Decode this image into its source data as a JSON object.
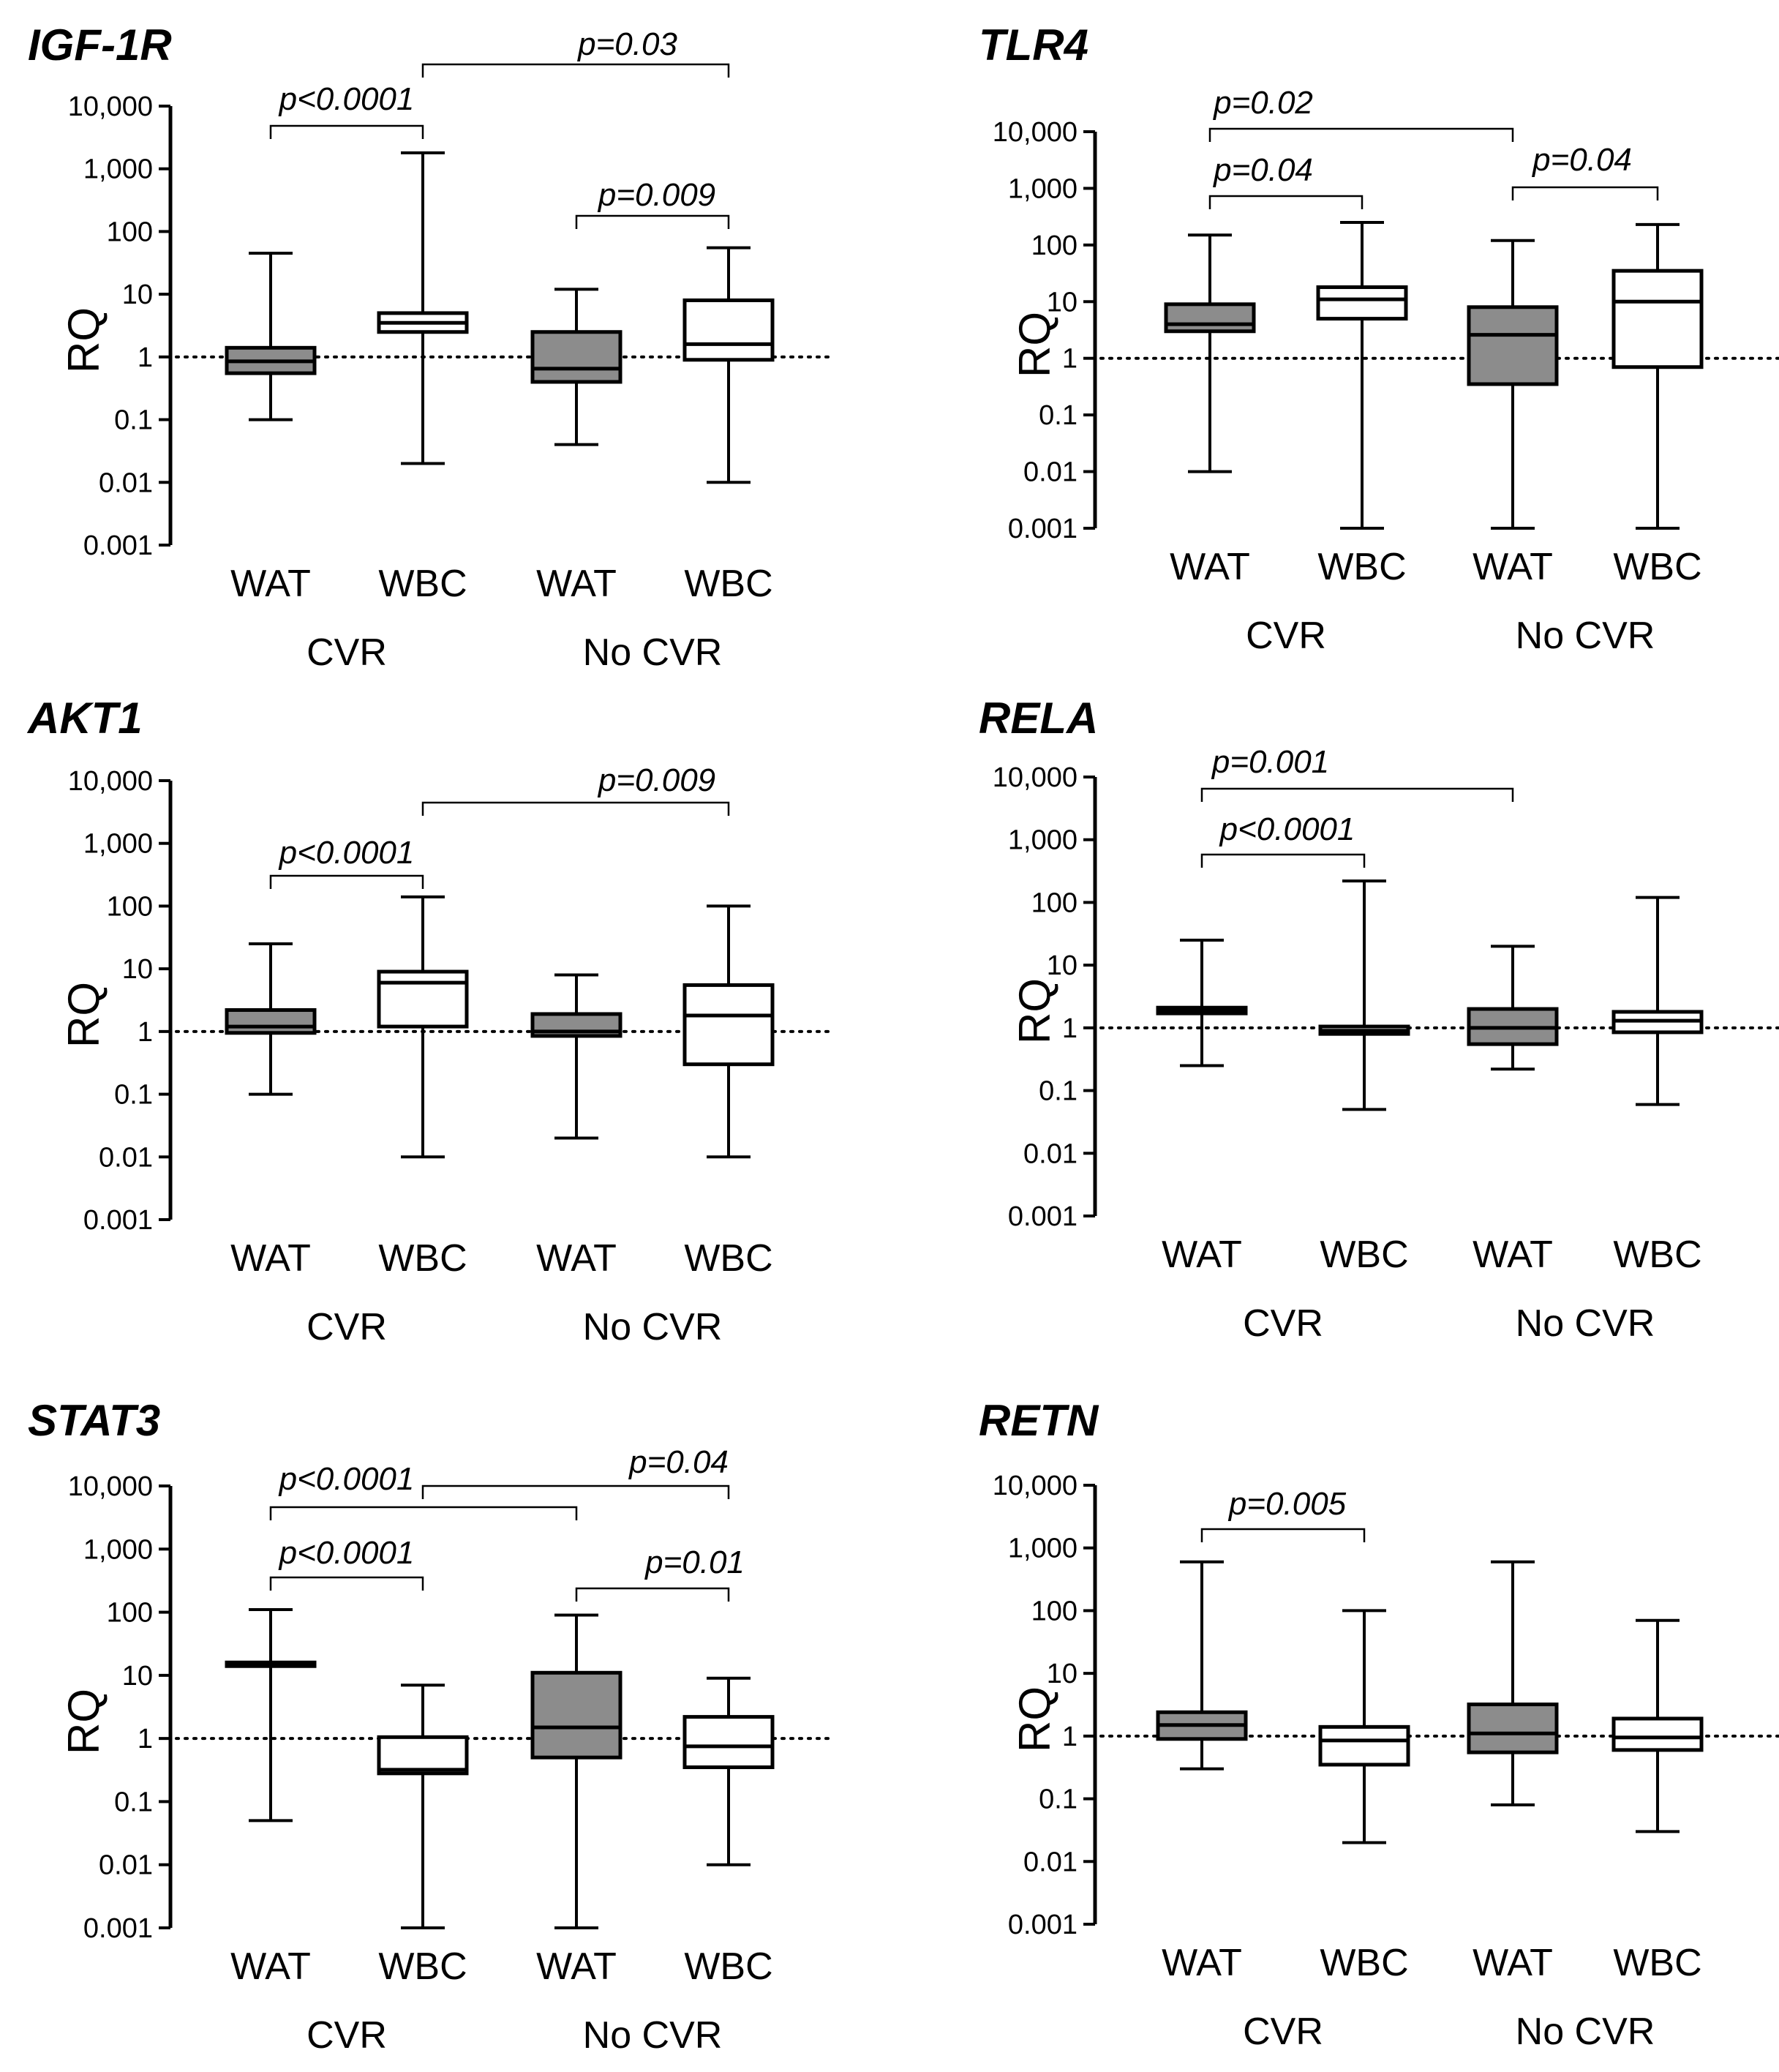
{
  "figure": {
    "y_axis_label": "RQ",
    "y_tick_labels": [
      "10,000",
      "1,000",
      "100",
      "10",
      "1",
      "0.1",
      "0.01",
      "0.001"
    ],
    "category_labels": [
      "WAT",
      "WBC",
      "WAT",
      "WBC"
    ],
    "group_labels": [
      "CVR",
      "No CVR"
    ],
    "colors": {
      "wat_fill": "#8c8c8c",
      "wbc_fill": "#ffffff",
      "stroke": "#000000"
    }
  },
  "chart_data": [
    {
      "type": "boxplot",
      "title": "IGF-1R",
      "ylabel": "RQ",
      "yscale": "log",
      "ylim": [
        0.001,
        10000
      ],
      "reference_line": 1,
      "categories": [
        "WAT",
        "WBC",
        "WAT",
        "WBC"
      ],
      "groups": [
        "CVR",
        "No CVR"
      ],
      "boxes": [
        {
          "group": "CVR",
          "tissue": "WAT",
          "min": 0.1,
          "q1": 0.55,
          "median": 0.85,
          "q3": 1.4,
          "max": 45
        },
        {
          "group": "CVR",
          "tissue": "WBC",
          "min": 0.02,
          "q1": 2.5,
          "median": 3.5,
          "q3": 5,
          "max": 1800
        },
        {
          "group": "No CVR",
          "tissue": "WAT",
          "min": 0.04,
          "q1": 0.4,
          "median": 0.65,
          "q3": 2.5,
          "max": 12
        },
        {
          "group": "No CVR",
          "tissue": "WBC",
          "min": 0.01,
          "q1": 0.9,
          "median": 1.6,
          "q3": 8,
          "max": 55
        }
      ],
      "comparisons": [
        {
          "from": 0,
          "to": 1,
          "label": "p<0.0001"
        },
        {
          "from": 1,
          "to": 3,
          "label": "p=0.03"
        },
        {
          "from": 2,
          "to": 3,
          "label": "p=0.009"
        }
      ]
    },
    {
      "type": "boxplot",
      "title": "TLR4",
      "ylabel": "RQ",
      "yscale": "log",
      "ylim": [
        0.001,
        10000
      ],
      "reference_line": 1,
      "categories": [
        "WAT",
        "WBC",
        "WAT",
        "WBC"
      ],
      "groups": [
        "CVR",
        "No CVR"
      ],
      "boxes": [
        {
          "group": "CVR",
          "tissue": "WAT",
          "min": 0.01,
          "q1": 3,
          "median": 4,
          "q3": 9,
          "max": 150
        },
        {
          "group": "CVR",
          "tissue": "WBC",
          "min": 0.001,
          "q1": 5,
          "median": 11,
          "q3": 18,
          "max": 250
        },
        {
          "group": "No CVR",
          "tissue": "WAT",
          "min": 0.001,
          "q1": 0.35,
          "median": 2.6,
          "q3": 8,
          "max": 120
        },
        {
          "group": "No CVR",
          "tissue": "WBC",
          "min": 0.001,
          "q1": 0.7,
          "median": 10,
          "q3": 35,
          "max": 230
        }
      ],
      "comparisons": [
        {
          "from": 0,
          "to": 2,
          "label": "p=0.02"
        },
        {
          "from": 0,
          "to": 1,
          "label": "p=0.04"
        },
        {
          "from": 2,
          "to": 3,
          "label": "p=0.04"
        }
      ]
    },
    {
      "type": "boxplot",
      "title": "AKT1",
      "ylabel": "RQ",
      "yscale": "log",
      "ylim": [
        0.001,
        10000
      ],
      "reference_line": 1,
      "categories": [
        "WAT",
        "WBC",
        "WAT",
        "WBC"
      ],
      "groups": [
        "CVR",
        "No CVR"
      ],
      "boxes": [
        {
          "group": "CVR",
          "tissue": "WAT",
          "min": 0.1,
          "q1": 0.95,
          "median": 1.2,
          "q3": 2.2,
          "max": 25
        },
        {
          "group": "CVR",
          "tissue": "WBC",
          "min": 0.01,
          "q1": 1.2,
          "median": 6,
          "q3": 9,
          "max": 140
        },
        {
          "group": "No CVR",
          "tissue": "WAT",
          "min": 0.02,
          "q1": 0.85,
          "median": 1,
          "q3": 1.9,
          "max": 8
        },
        {
          "group": "No CVR",
          "tissue": "WBC",
          "min": 0.01,
          "q1": 0.3,
          "median": 1.8,
          "q3": 5.5,
          "max": 100
        }
      ],
      "comparisons": [
        {
          "from": 1,
          "to": 3,
          "label": "p=0.009"
        },
        {
          "from": 0,
          "to": 1,
          "label": "p<0.0001"
        }
      ]
    },
    {
      "type": "boxplot",
      "title": "RELA",
      "ylabel": "RQ",
      "yscale": "log",
      "ylim": [
        0.001,
        10000
      ],
      "reference_line": 1,
      "categories": [
        "WAT",
        "WBC",
        "WAT",
        "WBC"
      ],
      "groups": [
        "CVR",
        "No CVR"
      ],
      "boxes": [
        {
          "group": "CVR",
          "tissue": "WAT",
          "min": 0.25,
          "q1": 1.7,
          "median": 1.9,
          "q3": 2.1,
          "max": 25
        },
        {
          "group": "CVR",
          "tissue": "WBC",
          "min": 0.05,
          "q1": 0.8,
          "median": 0.9,
          "q3": 1.05,
          "max": 220
        },
        {
          "group": "No CVR",
          "tissue": "WAT",
          "min": 0.22,
          "q1": 0.55,
          "median": 1,
          "q3": 2,
          "max": 20
        },
        {
          "group": "No CVR",
          "tissue": "WBC",
          "min": 0.06,
          "q1": 0.85,
          "median": 1.3,
          "q3": 1.8,
          "max": 120
        }
      ],
      "comparisons": [
        {
          "from": 0,
          "to": 2,
          "label": "p=0.001"
        },
        {
          "from": 0,
          "to": 1,
          "label": "p<0.0001"
        }
      ]
    },
    {
      "type": "boxplot",
      "title": "STAT3",
      "ylabel": "RQ",
      "yscale": "log",
      "ylim": [
        0.001,
        10000
      ],
      "reference_line": 1,
      "categories": [
        "WAT",
        "WBC",
        "WAT",
        "WBC"
      ],
      "groups": [
        "CVR",
        "No CVR"
      ],
      "boxes": [
        {
          "group": "CVR",
          "tissue": "WAT",
          "min": 0.05,
          "q1": 14,
          "median": 15,
          "q3": 16,
          "max": 110
        },
        {
          "group": "CVR",
          "tissue": "WBC",
          "min": 0.001,
          "q1": 0.28,
          "median": 0.32,
          "q3": 1.05,
          "max": 7
        },
        {
          "group": "No CVR",
          "tissue": "WAT",
          "min": 0.001,
          "q1": 0.5,
          "median": 1.5,
          "q3": 11,
          "max": 90
        },
        {
          "group": "No CVR",
          "tissue": "WBC",
          "min": 0.01,
          "q1": 0.35,
          "median": 0.75,
          "q3": 2.2,
          "max": 9
        }
      ],
      "comparisons": [
        {
          "from": 1,
          "to": 3,
          "label": "p=0.04"
        },
        {
          "from": 0,
          "to": 2,
          "label": "p<0.0001"
        },
        {
          "from": 0,
          "to": 1,
          "label": "p<0.0001"
        },
        {
          "from": 2,
          "to": 3,
          "label": "p=0.01"
        }
      ]
    },
    {
      "type": "boxplot",
      "title": "RETN",
      "ylabel": "RQ",
      "yscale": "log",
      "ylim": [
        0.001,
        10000
      ],
      "reference_line": 1,
      "categories": [
        "WAT",
        "WBC",
        "WAT",
        "WBC"
      ],
      "groups": [
        "CVR",
        "No CVR"
      ],
      "boxes": [
        {
          "group": "CVR",
          "tissue": "WAT",
          "min": 0.3,
          "q1": 0.9,
          "median": 1.5,
          "q3": 2.4,
          "max": 600
        },
        {
          "group": "CVR",
          "tissue": "WBC",
          "min": 0.02,
          "q1": 0.35,
          "median": 0.85,
          "q3": 1.4,
          "max": 100
        },
        {
          "group": "No CVR",
          "tissue": "WAT",
          "min": 0.08,
          "q1": 0.55,
          "median": 1.1,
          "q3": 3.2,
          "max": 600
        },
        {
          "group": "No CVR",
          "tissue": "WBC",
          "min": 0.03,
          "q1": 0.6,
          "median": 0.95,
          "q3": 1.9,
          "max": 70
        }
      ],
      "comparisons": [
        {
          "from": 0,
          "to": 1,
          "label": "p=0.005"
        }
      ]
    }
  ]
}
